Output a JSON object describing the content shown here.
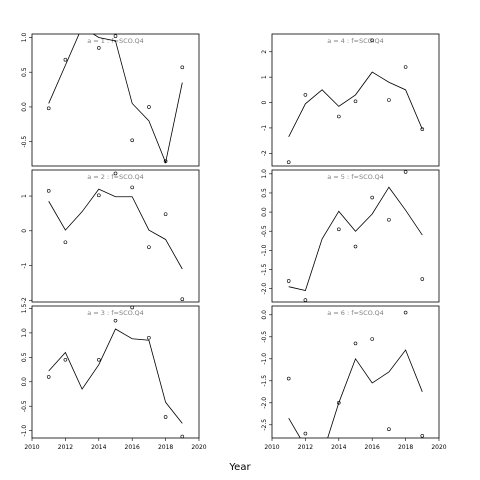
{
  "figure": {
    "xlabel": "Year",
    "x_ticks": [
      2010,
      2012,
      2014,
      2016,
      2018,
      2020
    ],
    "x_range": [
      2010,
      2020
    ]
  },
  "chart_data": [
    {
      "type": "line",
      "title": "a = 1 : f=SCO.Q4",
      "ylim": [
        -0.85,
        1.05
      ],
      "y_ticks": [
        -0.5,
        0.0,
        0.5,
        1.0
      ],
      "y_tick_labels": [
        "-0.5",
        "0.0",
        "0.5",
        "1.0"
      ],
      "line_x": [
        2011,
        2012,
        2013,
        2014,
        2015,
        2016,
        2017,
        2018,
        2019
      ],
      "line_y": [
        0.05,
        0.6,
        1.15,
        1.0,
        0.95,
        0.05,
        -0.2,
        -0.8,
        0.35
      ],
      "points_x": [
        2011,
        2012,
        2014,
        2015,
        2016,
        2017,
        2018,
        2019
      ],
      "points_y": [
        -0.02,
        0.68,
        0.85,
        1.02,
        -0.48,
        0.0,
        -0.78,
        0.57
      ]
    },
    {
      "type": "line",
      "title": "a = 4 : f=SCO.Q4",
      "ylim": [
        -2.5,
        2.7
      ],
      "y_ticks": [
        -2,
        -1,
        0,
        1,
        2
      ],
      "y_tick_labels": [
        "-2",
        "-1",
        "0",
        "1",
        "2"
      ],
      "line_x": [
        2011,
        2012,
        2013,
        2014,
        2015,
        2016,
        2017,
        2018,
        2019
      ],
      "line_y": [
        -1.35,
        -0.05,
        0.5,
        -0.15,
        0.3,
        1.2,
        0.8,
        0.5,
        -1.05
      ],
      "points_x": [
        2011,
        2012,
        2014,
        2015,
        2016,
        2017,
        2018,
        2019
      ],
      "points_y": [
        -2.35,
        0.3,
        -0.55,
        0.05,
        2.45,
        0.1,
        1.4,
        -1.05
      ]
    },
    {
      "type": "line",
      "title": "a = 2 : f=SCO.Q4",
      "ylim": [
        -2.05,
        1.75
      ],
      "y_ticks": [
        -2,
        -1,
        0,
        1
      ],
      "y_tick_labels": [
        "-2",
        "-1",
        "0",
        "1"
      ],
      "line_x": [
        2011,
        2012,
        2013,
        2014,
        2015,
        2016,
        2017,
        2018,
        2019
      ],
      "line_y": [
        0.85,
        0.02,
        0.55,
        1.2,
        0.98,
        0.98,
        0.02,
        -0.25,
        -1.1
      ],
      "points_x": [
        2011,
        2012,
        2014,
        2015,
        2016,
        2017,
        2018,
        2019
      ],
      "points_y": [
        1.15,
        -0.33,
        1.02,
        1.65,
        1.25,
        -0.47,
        0.48,
        -1.97
      ]
    },
    {
      "type": "line",
      "title": "a = 5 : f=SCO.Q4",
      "ylim": [
        -2.35,
        1.1
      ],
      "y_ticks": [
        -2.0,
        -1.5,
        -1.0,
        -0.5,
        0.0,
        0.5,
        1.0
      ],
      "y_tick_labels": [
        "-2.0",
        "-1.5",
        "-1.0",
        "-0.5",
        "0.0",
        "0.5",
        "1.0"
      ],
      "line_x": [
        2011,
        2012,
        2013,
        2014,
        2015,
        2016,
        2017,
        2018,
        2019
      ],
      "line_y": [
        -1.95,
        -2.05,
        -0.7,
        0.02,
        -0.5,
        -0.05,
        0.65,
        0.05,
        -0.6
      ],
      "points_x": [
        2011,
        2012,
        2014,
        2015,
        2016,
        2017,
        2018,
        2019
      ],
      "points_y": [
        -1.8,
        -2.3,
        -0.45,
        -0.9,
        0.38,
        -0.2,
        1.05,
        -1.75
      ]
    },
    {
      "type": "line",
      "title": "a = 3 : f=SCO.Q4",
      "ylim": [
        -1.15,
        1.55
      ],
      "y_ticks": [
        -1.0,
        -0.5,
        0.0,
        0.5,
        1.0,
        1.5
      ],
      "y_tick_labels": [
        "-1.0",
        "-0.5",
        "0.0",
        "0.5",
        "1.0",
        "1.5"
      ],
      "line_x": [
        2011,
        2012,
        2013,
        2014,
        2015,
        2016,
        2017,
        2018,
        2019
      ],
      "line_y": [
        0.22,
        0.6,
        -0.15,
        0.35,
        1.08,
        0.88,
        0.85,
        -0.42,
        -0.85
      ],
      "points_x": [
        2011,
        2012,
        2014,
        2015,
        2016,
        2017,
        2018,
        2019
      ],
      "points_y": [
        0.1,
        0.45,
        0.45,
        1.25,
        1.52,
        0.9,
        -0.72,
        -1.12
      ]
    },
    {
      "type": "line",
      "title": "a = 6 : f=SCO.Q4",
      "ylim": [
        -2.8,
        0.2
      ],
      "y_ticks": [
        -2.5,
        -2.0,
        -1.5,
        -1.0,
        -0.5,
        0.0
      ],
      "y_tick_labels": [
        "-2.5",
        "-2.0",
        "-1.5",
        "-1.0",
        "-0.5",
        "0.0"
      ],
      "line_x": [
        2011,
        2012,
        2013,
        2014,
        2015,
        2016,
        2017,
        2018,
        2019
      ],
      "line_y": [
        -2.35,
        -3.0,
        -3.2,
        -2.0,
        -1.0,
        -1.55,
        -1.3,
        -0.8,
        -1.75
      ],
      "points_x": [
        2011,
        2012,
        2014,
        2015,
        2016,
        2017,
        2018,
        2019
      ],
      "points_y": [
        -1.45,
        -2.7,
        -2.0,
        -0.65,
        -0.55,
        -2.6,
        0.05,
        -2.75
      ]
    }
  ]
}
